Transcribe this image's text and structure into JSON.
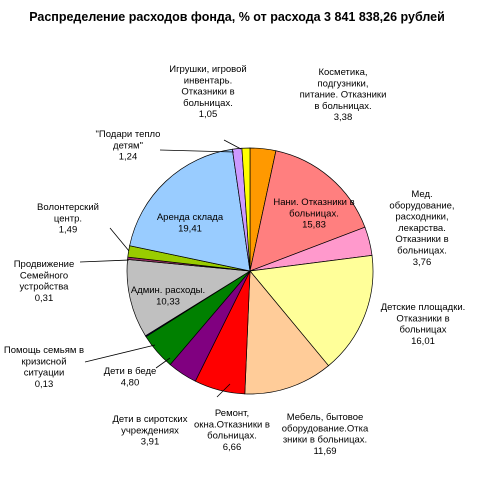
{
  "chart_data": {
    "type": "pie",
    "title": "Распределение расходов фонда, % от расхода 3 841 838,26 рублей",
    "slices": [
      {
        "label": "Косметика, подгузники, питание. Отказники в больницах.",
        "value": 3.38,
        "value_text": "3,38",
        "color": "#ff9900"
      },
      {
        "label": "Нани. Отказники в больницах.",
        "value": 15.83,
        "value_text": "15,83",
        "color": "#ff7f7f"
      },
      {
        "label": "Мед. оборудование, расходники, лекарства. Отказники в больницах.",
        "value": 3.76,
        "value_text": "3,76",
        "color": "#ff99cc"
      },
      {
        "label": "Детские площадки. Отказники в больницах",
        "value": 16.01,
        "value_text": "16,01",
        "color": "#ffff99"
      },
      {
        "label": "Мебель, бытовое оборудование.Отказники в больницах.",
        "value": 11.69,
        "value_text": "11,69",
        "color": "#ffcc99"
      },
      {
        "label": "Ремонт, окна.Отказники в больницах.",
        "value": 6.66,
        "value_text": "6,66",
        "color": "#ff0000"
      },
      {
        "label": "Дети в сиротских учреждениях",
        "value": 3.91,
        "value_text": "3,91",
        "color": "#800080"
      },
      {
        "label": "Дети в беде",
        "value": 4.8,
        "value_text": "4,80",
        "color": "#008000"
      },
      {
        "label": "Помощь семьям в кризисной ситуации",
        "value": 0.13,
        "value_text": "0,13",
        "color": "#000080"
      },
      {
        "label": "Админ. расходы.",
        "value": 10.33,
        "value_text": "10,33",
        "color": "#c0c0c0"
      },
      {
        "label": "Продвижение Семейного устройства",
        "value": 0.31,
        "value_text": "0,31",
        "color": "#993366"
      },
      {
        "label": "Волонтерский центр.",
        "value": 1.49,
        "value_text": "1,49",
        "color": "#99cc00"
      },
      {
        "label": "Аренда склада",
        "value": 19.41,
        "value_text": "19,41",
        "color": "#99ccff"
      },
      {
        "label": "\"Подари тепло детям\"",
        "value": 1.24,
        "value_text": "1,24",
        "color": "#cc99ff"
      },
      {
        "label": "Игрушки, игровой инвентарь. Отказники в больницах.",
        "value": 1.05,
        "value_text": "1,05",
        "color": "#ffff00"
      }
    ]
  }
}
